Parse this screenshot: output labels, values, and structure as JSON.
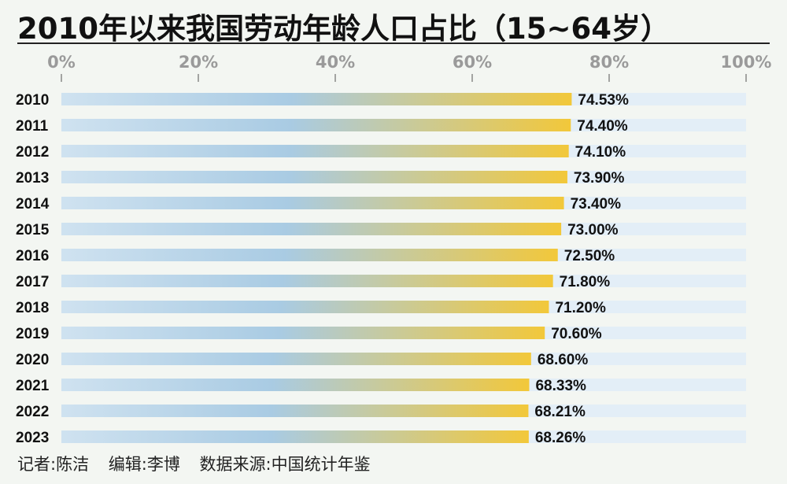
{
  "chart_data": {
    "type": "bar",
    "orientation": "horizontal",
    "title": "2010年以来我国劳动年龄人口占比（15~64岁）",
    "categories": [
      "2010",
      "2011",
      "2012",
      "2013",
      "2014",
      "2015",
      "2016",
      "2017",
      "2018",
      "2019",
      "2020",
      "2021",
      "2022",
      "2023"
    ],
    "values": [
      74.53,
      74.4,
      74.1,
      73.9,
      73.4,
      73.0,
      72.5,
      71.8,
      71.2,
      70.6,
      68.6,
      68.33,
      68.21,
      68.26
    ],
    "value_labels": [
      "74.53%",
      "74.40%",
      "74.10%",
      "73.90%",
      "73.40%",
      "73.00%",
      "72.50%",
      "71.80%",
      "71.20%",
      "70.60%",
      "68.60%",
      "68.33%",
      "68.21%",
      "68.26%"
    ],
    "x_ticks": [
      0,
      20,
      40,
      60,
      80,
      100
    ],
    "x_tick_labels": [
      "0%",
      "20%",
      "40%",
      "60%",
      "80%",
      "100%"
    ],
    "xlim": [
      0,
      100
    ],
    "unit": "%"
  },
  "colors": {
    "bar_start": "#cfe2f0",
    "bar_mid": "#a9cbe3",
    "bar_end": "#f2c83a",
    "track": "#e3eef7",
    "tick_label": "#9a9a9a",
    "axis": "#888888"
  },
  "footer": {
    "reporter": "记者:陈洁",
    "editor": "编辑:李博",
    "source": "数据来源:中国统计年鉴"
  }
}
